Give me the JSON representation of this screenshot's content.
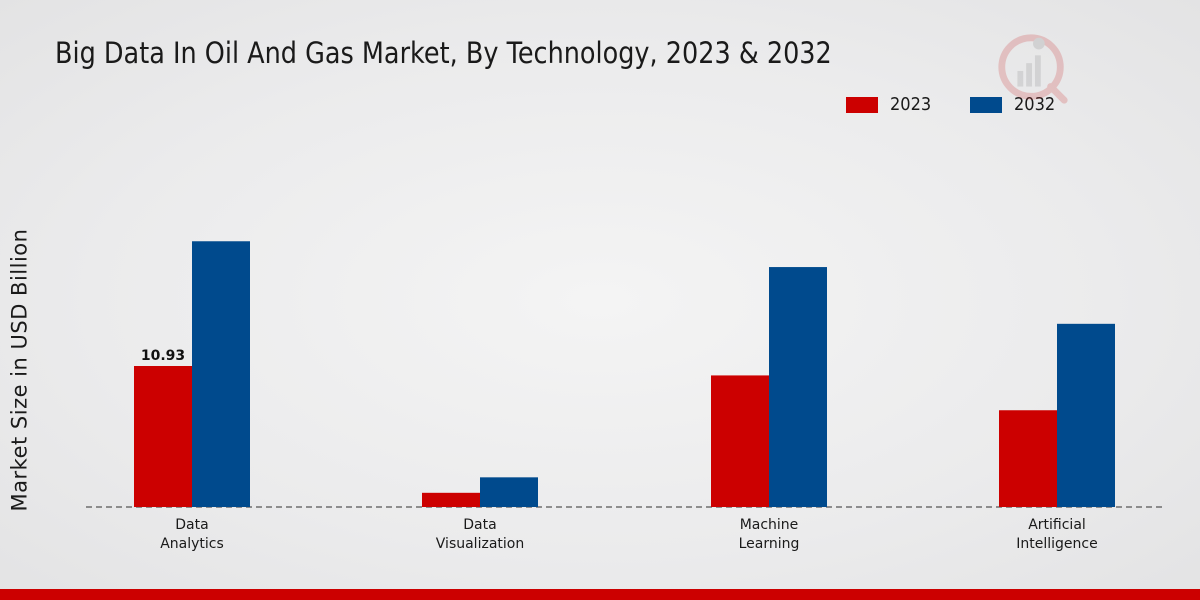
{
  "chart_data": {
    "type": "bar",
    "title": "Big Data In Oil And Gas Market, By Technology, 2023 & 2032",
    "xlabel": "",
    "ylabel": "Market Size in USD Billion",
    "categories": [
      "Data\nAnalytics",
      "Data\nVisualization",
      "Machine\nLearning",
      "Artificial\nIntelligence"
    ],
    "series": [
      {
        "name": "2023",
        "color": "#cc0000",
        "values": [
          10.93,
          1.1,
          10.2,
          7.5
        ]
      },
      {
        "name": "2032",
        "color": "#004a8d",
        "values": [
          20.6,
          2.3,
          18.6,
          14.2
        ]
      }
    ],
    "data_labels": [
      {
        "series": 0,
        "index": 0,
        "text": "10.93"
      }
    ],
    "ylim": [
      0,
      30
    ],
    "legend_position": "top-right",
    "grid": false
  },
  "colors": {
    "accent_bar": "#cc0000"
  }
}
